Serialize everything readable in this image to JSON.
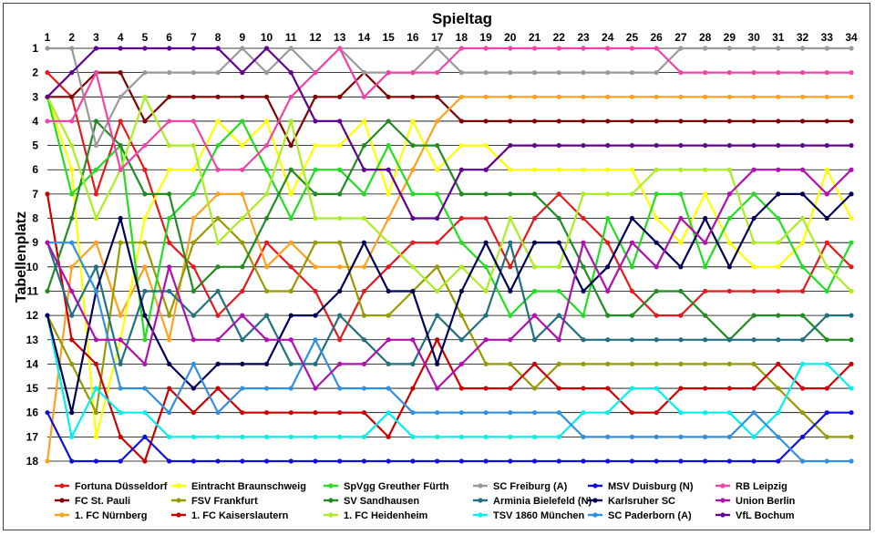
{
  "chart_data": {
    "type": "line",
    "title": "Spieltag",
    "ylabel": "Tabellenplatz",
    "x": [
      1,
      2,
      3,
      4,
      5,
      6,
      7,
      8,
      9,
      10,
      11,
      12,
      13,
      14,
      15,
      16,
      17,
      18,
      19,
      20,
      21,
      22,
      23,
      24,
      25,
      26,
      27,
      28,
      29,
      30,
      31,
      32,
      33,
      34
    ],
    "xlim": [
      1,
      34
    ],
    "ylim": [
      1,
      18
    ],
    "y_inverted": true,
    "yticks": [
      1,
      2,
      3,
      4,
      5,
      6,
      7,
      8,
      9,
      10,
      11,
      12,
      13,
      14,
      15,
      16,
      17,
      18
    ],
    "grid": true,
    "legend_position": "bottom",
    "series": [
      {
        "name": "Fortuna Düsseldorf",
        "color": "#e41a1c",
        "values": [
          2,
          3,
          7,
          4,
          6,
          9,
          10,
          12,
          11,
          9,
          10,
          11,
          13,
          11,
          10,
          9,
          9,
          8,
          8,
          10,
          8,
          7,
          8,
          9,
          11,
          12,
          12,
          11,
          11,
          11,
          11,
          11,
          9,
          10
        ]
      },
      {
        "name": "FC St. Pauli",
        "color": "#800000",
        "values": [
          3,
          3,
          2,
          2,
          4,
          3,
          3,
          3,
          3,
          3,
          5,
          3,
          3,
          2,
          3,
          3,
          3,
          4,
          4,
          4,
          4,
          4,
          4,
          4,
          4,
          4,
          4,
          4,
          4,
          4,
          4,
          4,
          4,
          4
        ]
      },
      {
        "name": "1. FC Nürnberg",
        "color": "#ffa020",
        "values": [
          18,
          10,
          9,
          12,
          10,
          13,
          8,
          7,
          7,
          10,
          9,
          10,
          10,
          10,
          8,
          6,
          4,
          3,
          3,
          3,
          3,
          3,
          3,
          3,
          3,
          3,
          3,
          3,
          3,
          3,
          3,
          3,
          3,
          3
        ]
      },
      {
        "name": "Eintracht Braunschweig",
        "color": "#ffff00",
        "values": [
          3,
          6,
          17,
          13,
          8,
          6,
          6,
          4,
          5,
          4,
          7,
          5,
          5,
          4,
          7,
          4,
          6,
          5,
          5,
          6,
          6,
          6,
          6,
          6,
          6,
          8,
          9,
          7,
          9,
          10,
          10,
          9,
          6,
          8
        ]
      },
      {
        "name": "FSV Frankfurt",
        "color": "#999900",
        "values": [
          12,
          14,
          16,
          9,
          9,
          12,
          9,
          8,
          9,
          11,
          11,
          9,
          9,
          12,
          12,
          11,
          10,
          12,
          14,
          14,
          15,
          14,
          14,
          14,
          14,
          14,
          14,
          14,
          14,
          14,
          15,
          16,
          17,
          17
        ]
      },
      {
        "name": "1. FC Kaiserslautern",
        "color": "#cc0000",
        "values": [
          7,
          13,
          14,
          17,
          18,
          15,
          16,
          15,
          16,
          16,
          16,
          16,
          16,
          16,
          17,
          15,
          13,
          15,
          15,
          15,
          14,
          15,
          15,
          15,
          16,
          16,
          15,
          15,
          15,
          15,
          14,
          15,
          15,
          14
        ]
      },
      {
        "name": "SpVgg Greuther Fürth",
        "color": "#22dd22",
        "values": [
          3,
          7,
          6,
          5,
          13,
          8,
          7,
          5,
          4,
          6,
          8,
          6,
          6,
          7,
          5,
          7,
          7,
          9,
          10,
          12,
          11,
          11,
          12,
          8,
          10,
          7,
          7,
          10,
          8,
          7,
          8,
          10,
          11,
          9
        ]
      },
      {
        "name": "SV Sandhausen",
        "color": "#228b22",
        "values": [
          11,
          8,
          4,
          5,
          7,
          7,
          11,
          10,
          10,
          8,
          6,
          7,
          7,
          5,
          4,
          5,
          5,
          7,
          7,
          7,
          7,
          8,
          10,
          12,
          12,
          11,
          11,
          12,
          13,
          12,
          12,
          12,
          13,
          13
        ]
      },
      {
        "name": "1. FC Heidenheim",
        "color": "#aaee22",
        "values": [
          3,
          5,
          8,
          6,
          3,
          5,
          5,
          9,
          8,
          7,
          4,
          8,
          8,
          8,
          9,
          10,
          11,
          10,
          11,
          8,
          10,
          10,
          7,
          7,
          7,
          6,
          6,
          6,
          6,
          9,
          9,
          8,
          10,
          11
        ]
      },
      {
        "name": "SC Freiburg (A)",
        "color": "#999999",
        "values": [
          1,
          1,
          5,
          3,
          2,
          2,
          2,
          2,
          1,
          2,
          1,
          2,
          1,
          2,
          2,
          2,
          1,
          2,
          2,
          2,
          2,
          2,
          2,
          2,
          2,
          2,
          1,
          1,
          1,
          1,
          1,
          1,
          1,
          1
        ]
      },
      {
        "name": "Arminia Bielefeld (N)",
        "color": "#207080",
        "values": [
          9,
          12,
          10,
          14,
          11,
          11,
          12,
          11,
          13,
          12,
          14,
          14,
          12,
          13,
          14,
          14,
          12,
          13,
          12,
          9,
          13,
          12,
          13,
          13,
          13,
          13,
          13,
          13,
          13,
          13,
          13,
          13,
          12,
          12
        ]
      },
      {
        "name": "TSV 1860 München",
        "color": "#00f0f0",
        "values": [
          12,
          17,
          15,
          16,
          16,
          17,
          17,
          17,
          17,
          17,
          17,
          17,
          17,
          17,
          16,
          17,
          17,
          17,
          17,
          17,
          17,
          17,
          16,
          16,
          15,
          15,
          16,
          16,
          16,
          17,
          16,
          14,
          14,
          15
        ]
      },
      {
        "name": "MSV Duisburg (N)",
        "color": "#1010dd",
        "values": [
          16,
          18,
          18,
          18,
          17,
          18,
          18,
          18,
          18,
          18,
          18,
          18,
          18,
          18,
          18,
          18,
          18,
          18,
          18,
          18,
          18,
          18,
          18,
          18,
          18,
          18,
          18,
          18,
          18,
          18,
          18,
          17,
          16,
          16
        ]
      },
      {
        "name": "Karlsruher SC",
        "color": "#000055",
        "values": [
          12,
          16,
          11,
          8,
          12,
          14,
          15,
          14,
          14,
          14,
          12,
          12,
          11,
          9,
          11,
          11,
          14,
          11,
          9,
          11,
          9,
          9,
          11,
          10,
          8,
          9,
          10,
          8,
          10,
          8,
          7,
          7,
          8,
          7
        ]
      },
      {
        "name": "SC Paderborn (A)",
        "color": "#3090e0",
        "values": [
          9,
          9,
          11,
          15,
          15,
          16,
          14,
          16,
          15,
          15,
          15,
          13,
          15,
          15,
          15,
          16,
          16,
          16,
          16,
          16,
          16,
          16,
          17,
          17,
          17,
          17,
          17,
          17,
          17,
          16,
          17,
          18,
          18,
          18
        ]
      },
      {
        "name": "RB Leipzig",
        "color": "#ee44aa",
        "values": [
          4,
          4,
          2,
          6,
          5,
          4,
          4,
          6,
          6,
          5,
          3,
          2,
          1,
          3,
          2,
          2,
          2,
          1,
          1,
          1,
          1,
          1,
          1,
          1,
          1,
          1,
          2,
          2,
          2,
          2,
          2,
          2,
          2,
          2
        ]
      },
      {
        "name": "Union Berlin",
        "color": "#b010b0",
        "values": [
          9,
          11,
          13,
          13,
          14,
          10,
          13,
          13,
          12,
          13,
          13,
          15,
          14,
          14,
          13,
          13,
          15,
          14,
          13,
          13,
          12,
          13,
          9,
          11,
          9,
          10,
          8,
          9,
          7,
          6,
          6,
          6,
          7,
          6
        ]
      },
      {
        "name": "VfL Bochum",
        "color": "#600090",
        "values": [
          3,
          2,
          1,
          1,
          1,
          1,
          1,
          1,
          2,
          1,
          2,
          4,
          4,
          6,
          6,
          8,
          8,
          6,
          6,
          5,
          5,
          5,
          5,
          5,
          5,
          5,
          5,
          5,
          5,
          5,
          5,
          5,
          5,
          5
        ]
      }
    ]
  }
}
